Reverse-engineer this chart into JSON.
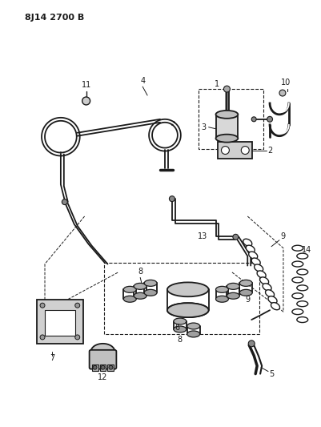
{
  "title_code": "8J14 2700 B",
  "bg_color": "#ffffff",
  "lc": "#1a1a1a",
  "fig_width": 4.02,
  "fig_height": 5.33,
  "dpi": 100
}
